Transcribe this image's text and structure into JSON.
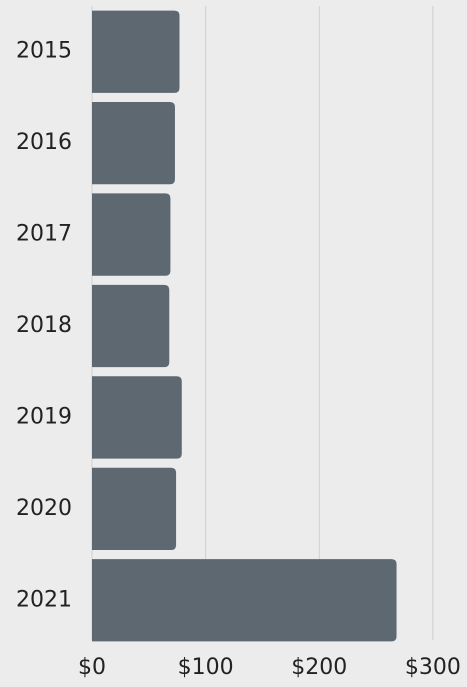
{
  "chart_data": {
    "type": "bar",
    "orientation": "horizontal",
    "categories": [
      "2015",
      "2016",
      "2017",
      "2018",
      "2019",
      "2020",
      "2021"
    ],
    "values": [
      77,
      73,
      69,
      68,
      79,
      74,
      268
    ],
    "color": "#5d6870",
    "xlim": [
      0,
      330
    ],
    "xticks": [
      {
        "value": 0,
        "label": "$0"
      },
      {
        "value": 100,
        "label": "$100"
      },
      {
        "value": 200,
        "label": "$200"
      },
      {
        "value": 300,
        "label": "$300"
      }
    ],
    "grid": true
  }
}
